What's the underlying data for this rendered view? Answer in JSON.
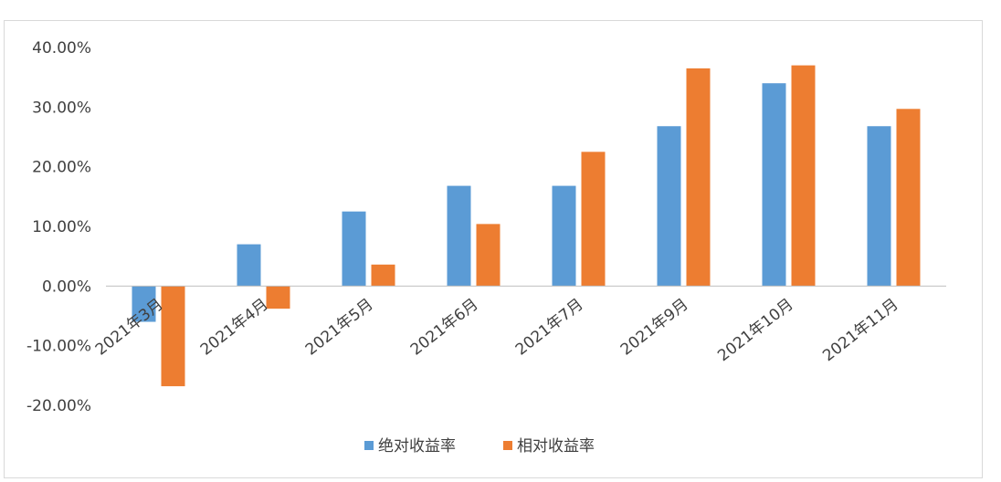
{
  "chart_data": {
    "type": "bar",
    "title": "",
    "xlabel": "",
    "ylabel": "",
    "categories": [
      "2021年3月",
      "2021年4月",
      "2021年5月",
      "2021年6月",
      "2021年7月",
      "2021年9月",
      "2021年10月",
      "2021年11月"
    ],
    "series": [
      {
        "name": "绝对收益率",
        "color": "#5b9bd5",
        "values": [
          -6.0,
          7.0,
          12.5,
          16.8,
          16.8,
          26.8,
          34.0,
          26.8
        ]
      },
      {
        "name": "相对收益率",
        "color": "#ed7d31",
        "values": [
          -16.8,
          -3.8,
          3.6,
          10.4,
          22.5,
          36.5,
          37.0,
          29.7
        ]
      }
    ],
    "ylim": [
      -20,
      40
    ],
    "yticks": [
      40,
      30,
      20,
      10,
      0,
      -10,
      -20
    ],
    "ytick_labels": [
      "40.00%",
      "30.00%",
      "20.00%",
      "10.00%",
      "0.00%",
      "-10.00%",
      "-20.00%"
    ],
    "grid": false,
    "legend_position": "bottom",
    "category_label_rotation": "diagonal"
  }
}
